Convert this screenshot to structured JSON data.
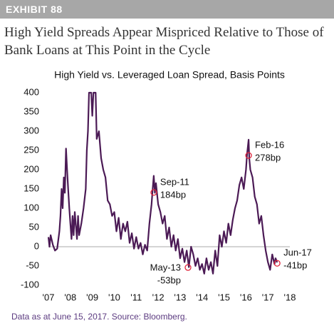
{
  "header": "EXHIBIT 88",
  "title": "High Yield Spreads Appear Mispriced Relative to Those of Bank Loans at This Point in the Cycle",
  "footer": "Data as at June 15, 2017. Source: Bloomberg.",
  "chart_data": {
    "type": "line",
    "title": "High Yield vs. Leveraged Loan Spread, Basis Points",
    "x": [
      2007.0,
      2007.05,
      2007.1,
      2007.2,
      2007.3,
      2007.4,
      2007.5,
      2007.55,
      2007.6,
      2007.65,
      2007.7,
      2007.75,
      2007.8,
      2007.85,
      2007.9,
      2007.95,
      2008.0,
      2008.05,
      2008.1,
      2008.15,
      2008.2,
      2008.3,
      2008.35,
      2008.4,
      2008.5,
      2008.6,
      2008.7,
      2008.75,
      2008.8,
      2008.85,
      2008.95,
      2009.0,
      2009.05,
      2009.15,
      2009.2,
      2009.3,
      2009.4,
      2009.5,
      2009.6,
      2009.7,
      2009.8,
      2009.9,
      2010.0,
      2010.1,
      2010.2,
      2010.3,
      2010.4,
      2010.5,
      2010.6,
      2010.7,
      2010.8,
      2010.9,
      2011.0,
      2011.1,
      2011.2,
      2011.3,
      2011.4,
      2011.5,
      2011.6,
      2011.7,
      2011.75,
      2011.8,
      2011.85,
      2011.9,
      2012.0,
      2012.1,
      2012.2,
      2012.3,
      2012.4,
      2012.5,
      2012.6,
      2012.7,
      2012.8,
      2012.9,
      2013.0,
      2013.1,
      2013.2,
      2013.3,
      2013.4,
      2013.5,
      2013.6,
      2013.7,
      2013.8,
      2013.9,
      2014.0,
      2014.1,
      2014.2,
      2014.3,
      2014.4,
      2014.5,
      2014.6,
      2014.7,
      2014.8,
      2014.9,
      2015.0,
      2015.1,
      2015.2,
      2015.3,
      2015.4,
      2015.5,
      2015.6,
      2015.7,
      2015.8,
      2015.9,
      2016.0,
      2016.05,
      2016.12,
      2016.15,
      2016.2,
      2016.3,
      2016.4,
      2016.5,
      2016.6,
      2016.7,
      2016.8,
      2016.9,
      2017.0,
      2017.1,
      2017.2,
      2017.3,
      2017.35,
      2017.42
    ],
    "series": [
      {
        "color": "#4b1a55",
        "values": [
          25,
          0,
          30,
          5,
          -10,
          -5,
          40,
          80,
          150,
          100,
          180,
          140,
          255,
          200,
          150,
          100,
          60,
          20,
          80,
          30,
          90,
          20,
          80,
          30,
          60,
          100,
          150,
          250,
          300,
          400,
          400,
          340,
          400,
          400,
          280,
          300,
          230,
          200,
          180,
          120,
          110,
          80,
          90,
          40,
          75,
          20,
          60,
          40,
          65,
          10,
          35,
          -5,
          25,
          -5,
          10,
          -20,
          5,
          -10,
          60,
          110,
          150,
          184,
          140,
          165,
          110,
          90,
          60,
          80,
          20,
          50,
          0,
          30,
          -10,
          20,
          -30,
          -5,
          -40,
          -10,
          -53,
          0,
          -20,
          -50,
          -30,
          -60,
          -45,
          -70,
          -30,
          -60,
          -40,
          -70,
          -10,
          -50,
          30,
          0,
          40,
          10,
          60,
          30,
          70,
          100,
          120,
          160,
          180,
          150,
          200,
          240,
          278,
          230,
          200,
          180,
          130,
          110,
          60,
          80,
          30,
          -10,
          -40,
          -60,
          -20,
          -45,
          -30,
          -41
        ]
      }
    ],
    "xlim": [
      2007,
      2018
    ],
    "xticks": [
      {
        "value": 2007,
        "label": "'07"
      },
      {
        "value": 2008,
        "label": "'08"
      },
      {
        "value": 2009,
        "label": "'09"
      },
      {
        "value": 2010,
        "label": "'10"
      },
      {
        "value": 2011,
        "label": "'11"
      },
      {
        "value": 2012,
        "label": "'12"
      },
      {
        "value": 2013,
        "label": "'13"
      },
      {
        "value": 2014,
        "label": "'14"
      },
      {
        "value": 2015,
        "label": "'15"
      },
      {
        "value": 2016,
        "label": "'16"
      },
      {
        "value": 2017,
        "label": "'17"
      },
      {
        "value": 2018,
        "label": "'18"
      }
    ],
    "ylim": [
      -100,
      400
    ],
    "yticks": [
      400,
      350,
      300,
      250,
      200,
      150,
      100,
      50,
      0,
      -50,
      -100
    ],
    "zero_line": true,
    "annotations": [
      {
        "x": 2011.8,
        "y": 141,
        "lines": [
          "Sep-11",
          "184bp"
        ],
        "side": "right"
      },
      {
        "x": 2016.12,
        "y": 237,
        "lines": [
          "Feb-16",
          "278bp"
        ],
        "side": "right"
      },
      {
        "x": 2013.36,
        "y": -54,
        "lines": [
          "May-13",
          "-53bp"
        ],
        "side": "left"
      },
      {
        "x": 2017.42,
        "y": -43,
        "lines": [
          "Jun-17",
          "-41bp"
        ],
        "side": "right"
      }
    ],
    "marker_color": "#e0243a"
  }
}
